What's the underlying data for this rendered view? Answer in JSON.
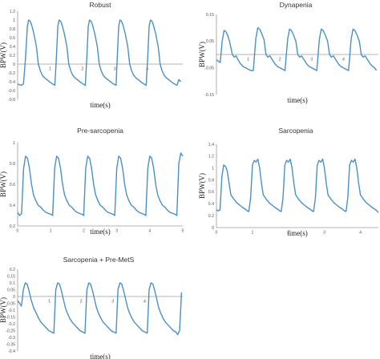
{
  "chart_data": [
    {
      "type": "line",
      "title": "Robust",
      "xlabel": "time(s)",
      "ylabel": "BPW(V)",
      "xlim": [
        0,
        5.1
      ],
      "ylim": [
        -0.8,
        1.2
      ],
      "yticks": [
        "-0.8",
        "-0.6",
        "-0.4",
        "-0.2",
        "0",
        "0.2",
        "0.4",
        "0.6",
        "0.8",
        "1",
        "1.2"
      ],
      "xticks": [
        "1",
        "2",
        "3",
        "4"
      ],
      "xtick_values": [
        1,
        2,
        3,
        4
      ],
      "x_axis_at": 0,
      "color": "#4a90c8",
      "series": [
        {
          "x": [
            0.0,
            0.06,
            0.12,
            0.18,
            0.24,
            0.3,
            0.34,
            0.38,
            0.42,
            0.5,
            0.58,
            0.64,
            0.7,
            0.76,
            0.84,
            0.92,
            0.98,
            1.04,
            1.1,
            1.15,
            1.2,
            1.24,
            1.28,
            1.32,
            1.36,
            1.44,
            1.52,
            1.58,
            1.64,
            1.7,
            1.78,
            1.86,
            1.92,
            1.98,
            2.04,
            2.09,
            2.14,
            2.18,
            2.22,
            2.26,
            2.3,
            2.38,
            2.46,
            2.52,
            2.58,
            2.64,
            2.72,
            2.8,
            2.86,
            2.92,
            2.98,
            3.04,
            3.08,
            3.12,
            3.16,
            3.2,
            3.24,
            3.32,
            3.4,
            3.46,
            3.52,
            3.58,
            3.66,
            3.74,
            3.8,
            3.86,
            3.92,
            3.97,
            4.02,
            4.06,
            4.1,
            4.14,
            4.18,
            4.26,
            4.34,
            4.4,
            4.46,
            4.52,
            4.6,
            4.68,
            4.74,
            4.8,
            4.86,
            4.92,
            4.98,
            5.04
          ],
          "y": [
            -0.45,
            -0.47,
            -0.48,
            -0.45,
            0.1,
            0.85,
            1.0,
            0.98,
            0.92,
            0.7,
            0.4,
            0.0,
            -0.15,
            -0.25,
            -0.32,
            -0.36,
            -0.4,
            -0.43,
            -0.46,
            -0.48,
            0.2,
            0.85,
            1.0,
            0.98,
            0.92,
            0.7,
            0.4,
            0.0,
            -0.15,
            -0.25,
            -0.32,
            -0.36,
            -0.4,
            -0.43,
            -0.46,
            -0.48,
            0.2,
            0.85,
            1.0,
            0.98,
            0.92,
            0.7,
            0.4,
            0.0,
            -0.15,
            -0.25,
            -0.32,
            -0.36,
            -0.4,
            -0.43,
            -0.46,
            -0.48,
            0.2,
            0.85,
            1.0,
            0.98,
            0.92,
            0.7,
            0.4,
            0.0,
            -0.15,
            -0.25,
            -0.32,
            -0.36,
            -0.4,
            -0.43,
            -0.46,
            -0.48,
            0.2,
            0.85,
            1.0,
            0.98,
            0.92,
            0.7,
            0.4,
            0.0,
            -0.15,
            -0.25,
            -0.32,
            -0.36,
            -0.4,
            -0.43,
            -0.46,
            -0.48,
            -0.35,
            -0.4
          ]
        }
      ]
    },
    {
      "type": "line",
      "title": "Dynapenia",
      "xlabel": "time(s)",
      "ylabel": "BPW(V)",
      "xlim": [
        0,
        5.1
      ],
      "ylim": [
        -0.15,
        0.15
      ],
      "yticks": [
        "-0.15",
        "-0.05",
        "0.05",
        "0.15"
      ],
      "xticks": [
        "1",
        "2",
        "3",
        "4"
      ],
      "xtick_values": [
        1,
        2,
        3,
        4
      ],
      "x_axis_at": 0,
      "color": "#4a90c8",
      "series": [
        {
          "x": [
            0.0,
            0.06,
            0.12,
            0.18,
            0.24,
            0.3,
            0.36,
            0.42,
            0.5,
            0.56,
            0.62,
            0.68,
            0.76,
            0.84,
            0.92,
            1.0,
            1.08,
            1.16,
            1.24,
            1.3,
            1.36,
            1.42,
            1.5,
            1.56,
            1.62,
            1.68,
            1.76,
            1.84,
            1.92,
            2.0,
            2.08,
            2.16,
            2.24,
            2.3,
            2.36,
            2.42,
            2.5,
            2.56,
            2.62,
            2.68,
            2.76,
            2.84,
            2.92,
            3.0,
            3.08,
            3.16,
            3.24,
            3.3,
            3.36,
            3.42,
            3.5,
            3.56,
            3.62,
            3.68,
            3.76,
            3.84,
            3.92,
            4.0,
            4.08,
            4.16,
            4.24,
            4.3,
            4.36,
            4.42,
            4.5,
            4.56,
            4.62,
            4.68,
            4.76,
            4.84,
            4.92,
            4.98,
            5.04
          ],
          "y": [
            -0.02,
            -0.025,
            -0.03,
            0.05,
            0.09,
            0.085,
            0.07,
            0.045,
            0.0,
            -0.01,
            -0.005,
            -0.02,
            -0.035,
            -0.045,
            -0.05,
            -0.055,
            -0.06,
            -0.06,
            0.06,
            0.1,
            0.095,
            0.08,
            0.055,
            0.0,
            -0.01,
            -0.005,
            -0.02,
            -0.035,
            -0.045,
            -0.05,
            -0.055,
            -0.06,
            0.055,
            0.095,
            0.09,
            0.075,
            0.05,
            0.0,
            -0.01,
            -0.005,
            -0.02,
            -0.035,
            -0.045,
            -0.05,
            -0.055,
            -0.06,
            0.055,
            0.095,
            0.09,
            0.075,
            0.05,
            0.0,
            -0.01,
            -0.005,
            -0.02,
            -0.035,
            -0.045,
            -0.05,
            -0.055,
            -0.06,
            0.055,
            0.095,
            0.09,
            0.075,
            0.05,
            0.0,
            -0.01,
            -0.005,
            -0.02,
            -0.035,
            -0.045,
            -0.05,
            -0.06
          ]
        }
      ]
    },
    {
      "type": "line",
      "title": "Pre-sarcopenia",
      "xlabel": "time(s)",
      "ylabel": "BPW(V)",
      "xlim": [
        0,
        5
      ],
      "ylim": [
        0.2,
        1.0
      ],
      "yticks": [
        "0.2",
        "0.4",
        "0.6",
        "0.8",
        "1"
      ],
      "xticks": [
        "0",
        "1",
        "2",
        "3",
        "4",
        "5"
      ],
      "xtick_values": [
        0,
        1,
        2,
        3,
        4,
        5
      ],
      "x_axis_at": 0.2,
      "color": "#4a90c8",
      "series": [
        {
          "x": [
            0.0,
            0.06,
            0.12,
            0.18,
            0.24,
            0.3,
            0.36,
            0.42,
            0.48,
            0.54,
            0.62,
            0.7,
            0.78,
            0.86,
            0.94,
            1.02,
            1.06,
            1.12,
            1.18,
            1.24,
            1.3,
            1.36,
            1.42,
            1.48,
            1.56,
            1.64,
            1.72,
            1.8,
            1.88,
            1.96,
            2.0,
            2.06,
            2.12,
            2.18,
            2.24,
            2.3,
            2.36,
            2.42,
            2.5,
            2.58,
            2.66,
            2.74,
            2.82,
            2.9,
            2.94,
            3.0,
            3.06,
            3.12,
            3.18,
            3.24,
            3.3,
            3.36,
            3.44,
            3.52,
            3.6,
            3.68,
            3.76,
            3.84,
            3.88,
            3.94,
            4.0,
            4.06,
            4.12,
            4.18,
            4.24,
            4.3,
            4.38,
            4.46,
            4.54,
            4.62,
            4.7,
            4.78,
            4.82,
            4.88,
            4.94,
            5.0
          ],
          "y": [
            0.33,
            0.3,
            0.32,
            0.75,
            0.87,
            0.85,
            0.75,
            0.6,
            0.5,
            0.45,
            0.4,
            0.38,
            0.35,
            0.33,
            0.32,
            0.31,
            0.3,
            0.75,
            0.87,
            0.85,
            0.75,
            0.6,
            0.5,
            0.45,
            0.4,
            0.38,
            0.35,
            0.33,
            0.32,
            0.31,
            0.3,
            0.75,
            0.87,
            0.85,
            0.75,
            0.6,
            0.5,
            0.45,
            0.4,
            0.38,
            0.35,
            0.33,
            0.32,
            0.31,
            0.3,
            0.75,
            0.87,
            0.85,
            0.75,
            0.6,
            0.5,
            0.45,
            0.4,
            0.38,
            0.35,
            0.33,
            0.32,
            0.31,
            0.3,
            0.75,
            0.87,
            0.85,
            0.75,
            0.6,
            0.5,
            0.45,
            0.4,
            0.38,
            0.35,
            0.33,
            0.32,
            0.31,
            0.3,
            0.8,
            0.9,
            0.87
          ]
        }
      ]
    },
    {
      "type": "line",
      "title": "Sarcopenia",
      "xlabel": "time(s)",
      "ylabel": "BPW(V)",
      "xlim": [
        0,
        4.5
      ],
      "ylim": [
        0,
        1.4
      ],
      "yticks": [
        "0",
        "0.2",
        "0.4",
        "0.6",
        "0.8",
        "1",
        "1.2",
        "1.4"
      ],
      "xticks": [
        "0",
        "1",
        "2",
        "3",
        "4"
      ],
      "xtick_values": [
        0,
        1,
        2,
        3,
        4
      ],
      "x_axis_at": 0,
      "color": "#4a90c8",
      "series": [
        {
          "x": [
            0.0,
            0.05,
            0.1,
            0.15,
            0.2,
            0.25,
            0.3,
            0.35,
            0.4,
            0.48,
            0.56,
            0.64,
            0.72,
            0.8,
            0.86,
            0.9,
            0.95,
            1.0,
            1.05,
            1.1,
            1.15,
            1.2,
            1.25,
            1.3,
            1.38,
            1.46,
            1.54,
            1.62,
            1.7,
            1.76,
            1.8,
            1.85,
            1.9,
            1.95,
            2.0,
            2.05,
            2.1,
            2.15,
            2.2,
            2.28,
            2.36,
            2.44,
            2.52,
            2.6,
            2.66,
            2.7,
            2.75,
            2.8,
            2.85,
            2.9,
            2.95,
            3.0,
            3.05,
            3.1,
            3.18,
            3.26,
            3.34,
            3.42,
            3.5,
            3.56,
            3.6,
            3.65,
            3.7,
            3.75,
            3.8,
            3.85,
            3.9,
            3.95,
            4.0,
            4.08,
            4.16,
            4.24,
            4.32,
            4.4,
            4.46,
            4.5
          ],
          "y": [
            0.3,
            0.28,
            0.3,
            0.85,
            1.05,
            1.03,
            0.95,
            0.75,
            0.55,
            0.48,
            0.42,
            0.38,
            0.34,
            0.31,
            0.28,
            0.27,
            0.5,
            1.05,
            1.13,
            1.1,
            1.15,
            1.0,
            0.75,
            0.55,
            0.48,
            0.42,
            0.38,
            0.34,
            0.31,
            0.28,
            0.27,
            0.5,
            1.05,
            1.13,
            1.1,
            1.15,
            1.0,
            0.75,
            0.55,
            0.48,
            0.42,
            0.38,
            0.34,
            0.31,
            0.28,
            0.27,
            0.5,
            1.05,
            1.13,
            1.1,
            1.15,
            1.0,
            0.75,
            0.55,
            0.48,
            0.42,
            0.38,
            0.34,
            0.31,
            0.28,
            0.27,
            0.5,
            1.05,
            1.13,
            1.1,
            1.15,
            1.0,
            0.75,
            0.55,
            0.48,
            0.42,
            0.38,
            0.34,
            0.31,
            0.28,
            0.25
          ]
        }
      ]
    },
    {
      "type": "line",
      "title": "Sarcopenia + Pre-MetS",
      "xlabel": "time(s)",
      "ylabel": "BPW(V)",
      "xlim": [
        0,
        5.2
      ],
      "ylim": [
        -0.4,
        0.2
      ],
      "yticks": [
        "-0.4",
        "-0.35",
        "-0.3",
        "-0.25",
        "-0.2",
        "-0.15",
        "-0.1",
        "-0.05",
        "0",
        "0.05",
        "0.1",
        "0.15",
        "0.2"
      ],
      "xticks": [
        "1",
        "2",
        "3",
        "4"
      ],
      "xtick_values": [
        1,
        2,
        3,
        4
      ],
      "x_axis_at": 0,
      "color": "#4a90c8",
      "series": [
        {
          "x": [
            0.0,
            0.06,
            0.12,
            0.18,
            0.24,
            0.3,
            0.36,
            0.42,
            0.5,
            0.58,
            0.66,
            0.74,
            0.82,
            0.9,
            0.98,
            1.06,
            1.14,
            1.2,
            1.26,
            1.32,
            1.38,
            1.44,
            1.5,
            1.56,
            1.64,
            1.72,
            1.8,
            1.88,
            1.96,
            2.04,
            2.12,
            2.18,
            2.24,
            2.3,
            2.36,
            2.42,
            2.48,
            2.54,
            2.62,
            2.7,
            2.78,
            2.86,
            2.94,
            3.02,
            3.1,
            3.16,
            3.22,
            3.28,
            3.34,
            3.4,
            3.46,
            3.52,
            3.6,
            3.68,
            3.76,
            3.84,
            3.92,
            4.0,
            4.08,
            4.14,
            4.2,
            4.26,
            4.32,
            4.38,
            4.44,
            4.5,
            4.58,
            4.66,
            4.74,
            4.82,
            4.9,
            4.98,
            5.04,
            5.1,
            5.16
          ],
          "y": [
            -0.03,
            -0.05,
            -0.07,
            0.05,
            0.1,
            0.09,
            0.04,
            -0.02,
            -0.08,
            -0.12,
            -0.16,
            -0.19,
            -0.21,
            -0.23,
            -0.25,
            -0.26,
            -0.27,
            0.05,
            0.1,
            0.09,
            0.04,
            -0.02,
            -0.08,
            -0.12,
            -0.16,
            -0.19,
            -0.21,
            -0.23,
            -0.25,
            -0.26,
            -0.27,
            0.05,
            0.1,
            0.09,
            0.04,
            -0.02,
            -0.08,
            -0.12,
            -0.16,
            -0.19,
            -0.21,
            -0.23,
            -0.25,
            -0.26,
            -0.27,
            0.05,
            0.1,
            0.09,
            0.04,
            -0.02,
            -0.08,
            -0.12,
            -0.16,
            -0.19,
            -0.21,
            -0.23,
            -0.25,
            -0.26,
            -0.27,
            0.05,
            0.1,
            0.09,
            0.04,
            -0.02,
            -0.08,
            -0.12,
            -0.16,
            -0.19,
            -0.21,
            -0.23,
            -0.25,
            -0.26,
            -0.28,
            -0.25,
            0.03
          ]
        }
      ]
    }
  ]
}
